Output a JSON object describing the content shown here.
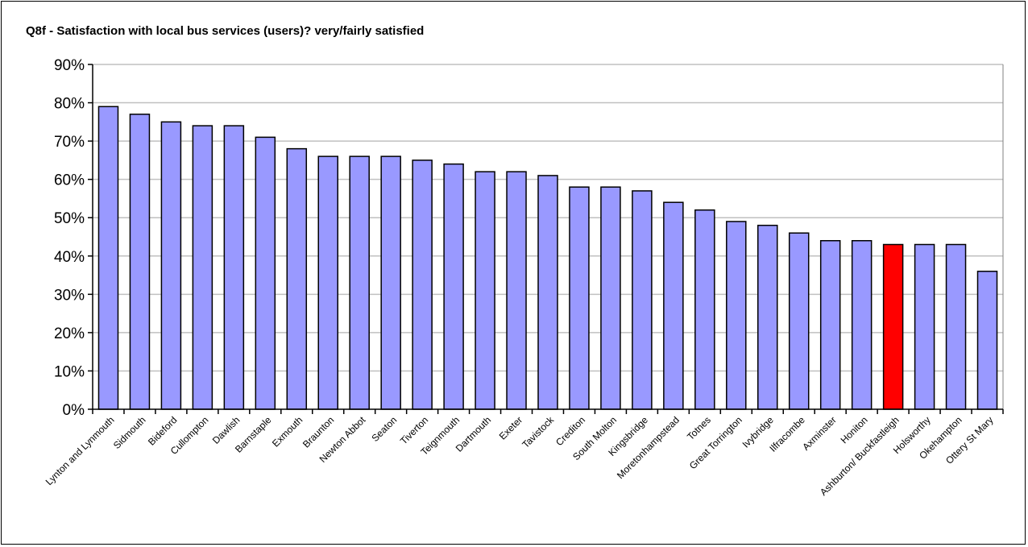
{
  "chart_data": {
    "type": "bar",
    "title": "Q8f - Satisfaction with local bus services (users)? very/fairly satisfied",
    "xlabel": "",
    "ylabel": "",
    "ylim": [
      0,
      90
    ],
    "y_tick_values": [
      0,
      10,
      20,
      30,
      40,
      50,
      60,
      70,
      80,
      90
    ],
    "y_tick_labels": [
      "0%",
      "10%",
      "20%",
      "30%",
      "40%",
      "50%",
      "60%",
      "70%",
      "80%",
      "90%"
    ],
    "grid": true,
    "legend": "none",
    "categories": [
      "Lynton and Lynmouth",
      "Sidmouth",
      "Bideford",
      "Cullompton",
      "Dawlish",
      "Barnstaple",
      "Exmouth",
      "Braunton",
      "Newton Abbot",
      "Seaton",
      "Tiverton",
      "Teignmouth",
      "Dartmouth",
      "Exeter",
      "Tavistock",
      "Crediton",
      "South Molton",
      "Kingsbridge",
      "Moretonhampstead",
      "Totnes",
      "Great Torrington",
      "Ivybridge",
      "Ilfracombe",
      "Axminster",
      "Honiton",
      "Ashburton/ Buckfastleigh",
      "Holsworthy",
      "Okehampton",
      "Ottery St Mary"
    ],
    "values": [
      79,
      77,
      75,
      74,
      74,
      71,
      68,
      66,
      66,
      66,
      65,
      64,
      62,
      62,
      61,
      58,
      58,
      57,
      54,
      52,
      49,
      48,
      46,
      44,
      44,
      43,
      43,
      43,
      36
    ],
    "highlight_category": "Ashburton/ Buckfastleigh",
    "colors": {
      "bar": "#9999ff",
      "highlight": "#ff0000",
      "bar_outline": "#000000",
      "grid": "#c0c0c0",
      "axis": "#000000"
    }
  }
}
